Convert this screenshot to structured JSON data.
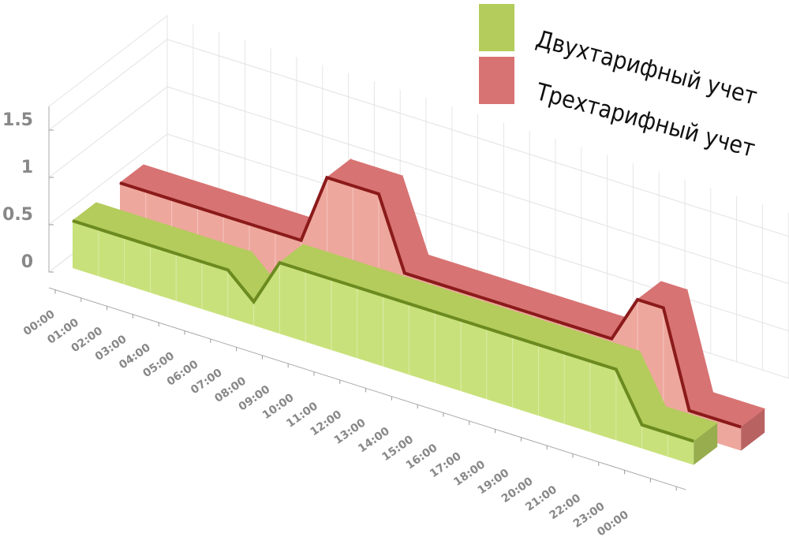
{
  "chart_data": {
    "type": "area3d",
    "categories": [
      "00:00",
      "01:00",
      "02:00",
      "03:00",
      "04:00",
      "05:00",
      "06:00",
      "07:00",
      "08:00",
      "09:00",
      "10:00",
      "11:00",
      "12:00",
      "13:00",
      "14:00",
      "15:00",
      "16:00",
      "17:00",
      "18:00",
      "19:00",
      "20:00",
      "21:00",
      "22:00",
      "23:00",
      "00:00"
    ],
    "series": [
      {
        "name": "Двухтарифный учет",
        "color": "#b3cc5b",
        "values": [
          0.5,
          0.5,
          0.5,
          0.5,
          0.5,
          0.5,
          0.5,
          0.25,
          0.75,
          0.75,
          0.75,
          0.75,
          0.75,
          0.75,
          0.75,
          0.75,
          0.75,
          0.75,
          0.75,
          0.75,
          0.75,
          0.75,
          0.25,
          0.25,
          0.25
        ]
      },
      {
        "name": "Трехтарифный учет",
        "color": "#d87373",
        "values": [
          0.75,
          0.75,
          0.75,
          0.75,
          0.75,
          0.75,
          0.75,
          0.75,
          1.5,
          1.5,
          1.5,
          0.75,
          0.75,
          0.75,
          0.75,
          0.75,
          0.75,
          0.75,
          0.75,
          0.75,
          1.25,
          1.25,
          0.25,
          0.25,
          0.25
        ]
      }
    ],
    "ylim": [
      0,
      1.75
    ],
    "yticks": [
      0,
      0.5,
      1,
      1.5
    ],
    "grid": true
  }
}
